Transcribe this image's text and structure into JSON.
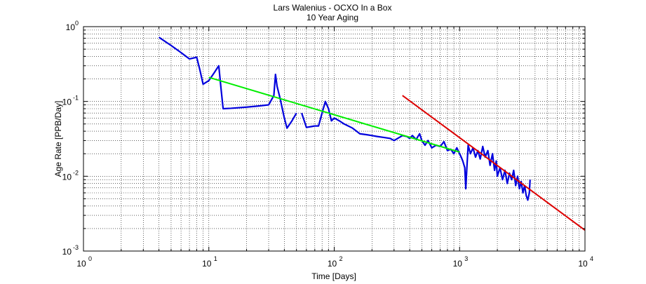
{
  "chart_data": {
    "type": "line",
    "title": "Lars Walenius - OCXO In a Box",
    "subtitle": "10 Year Aging",
    "xlabel": "Time [Days]",
    "ylabel": "Age Rate [PPB/Day]",
    "xscale": "log",
    "yscale": "log",
    "xlim": [
      1,
      10000
    ],
    "ylim": [
      0.001,
      1
    ],
    "grid": true,
    "x_ticks": [
      {
        "value": 1,
        "base": "10",
        "exp": "0"
      },
      {
        "value": 10,
        "base": "10",
        "exp": "1"
      },
      {
        "value": 100,
        "base": "10",
        "exp": "2"
      },
      {
        "value": 1000,
        "base": "10",
        "exp": "3"
      },
      {
        "value": 10000,
        "base": "10",
        "exp": "4"
      }
    ],
    "y_ticks": [
      {
        "value": 1,
        "base": "10",
        "exp": "0"
      },
      {
        "value": 0.1,
        "base": "10",
        "exp": "-1"
      },
      {
        "value": 0.01,
        "base": "10",
        "exp": "-2"
      },
      {
        "value": 0.001,
        "base": "10",
        "exp": "-3"
      }
    ],
    "series": [
      {
        "color": "#0000dd",
        "points": [
          [
            4.0,
            0.72
          ],
          [
            5.0,
            0.56
          ],
          [
            6.0,
            0.45
          ],
          [
            7.0,
            0.37
          ],
          [
            7.5,
            0.38
          ],
          [
            8.0,
            0.39
          ],
          [
            8.5,
            0.26
          ],
          [
            9.0,
            0.17
          ],
          [
            10.0,
            0.19
          ],
          [
            11.0,
            0.24
          ],
          [
            12.0,
            0.3
          ],
          [
            12.5,
            0.15
          ],
          [
            13.0,
            0.08
          ],
          [
            15.0,
            0.081
          ],
          [
            20.0,
            0.084
          ],
          [
            25.0,
            0.087
          ],
          [
            30.0,
            0.09
          ],
          [
            33.0,
            0.12
          ],
          [
            34.0,
            0.23
          ],
          [
            35.0,
            0.16
          ],
          [
            37.0,
            0.11
          ],
          [
            40.0,
            0.06
          ],
          [
            42.0,
            0.044
          ],
          [
            46.0,
            0.055
          ],
          [
            50.0,
            0.07
          ],
          null,
          [
            55.0,
            0.07
          ],
          [
            60.0,
            0.045
          ],
          [
            65.0,
            0.046
          ],
          [
            70.0,
            0.047
          ],
          [
            75.0,
            0.047
          ],
          [
            80.0,
            0.07
          ],
          [
            85.0,
            0.1
          ],
          [
            90.0,
            0.08
          ],
          [
            95.0,
            0.055
          ],
          [
            100.0,
            0.06
          ],
          [
            110.0,
            0.055
          ],
          [
            120.0,
            0.05
          ],
          [
            140.0,
            0.044
          ],
          [
            160.0,
            0.037
          ],
          [
            180.0,
            0.036
          ],
          [
            200.0,
            0.035
          ],
          [
            220.0,
            0.034
          ],
          [
            250.0,
            0.033
          ],
          [
            280.0,
            0.032
          ],
          [
            300.0,
            0.03
          ],
          [
            330.0,
            0.033
          ],
          [
            350.0,
            0.035
          ],
          [
            380.0,
            0.034
          ],
          [
            400.0,
            0.032
          ],
          [
            420.0,
            0.035
          ],
          [
            450.0,
            0.031
          ],
          [
            480.0,
            0.037
          ],
          [
            500.0,
            0.03
          ],
          [
            530.0,
            0.026
          ],
          [
            560.0,
            0.03
          ],
          [
            600.0,
            0.024
          ],
          [
            650.0,
            0.026
          ],
          [
            700.0,
            0.025
          ],
          [
            750.0,
            0.029
          ],
          [
            800.0,
            0.022
          ],
          [
            850.0,
            0.023
          ],
          [
            900.0,
            0.02
          ],
          [
            950.0,
            0.024
          ],
          [
            1000.0,
            0.02
          ],
          [
            1030.0,
            0.018
          ],
          [
            1060.0,
            0.016
          ],
          [
            1100.0,
            0.013
          ],
          [
            1120.0,
            0.0068
          ],
          [
            1140.0,
            0.012
          ],
          [
            1170.0,
            0.026
          ],
          [
            1220.0,
            0.02
          ],
          [
            1280.0,
            0.024
          ],
          [
            1340.0,
            0.018
          ],
          [
            1400.0,
            0.022
          ],
          [
            1460.0,
            0.017
          ],
          [
            1530.0,
            0.025
          ],
          [
            1600.0,
            0.018
          ],
          [
            1680.0,
            0.022
          ],
          [
            1750.0,
            0.014
          ],
          [
            1830.0,
            0.02
          ],
          [
            1900.0,
            0.012
          ],
          [
            1960.0,
            0.016
          ],
          [
            2000.0,
            0.01
          ],
          [
            2100.0,
            0.013
          ],
          [
            2200.0,
            0.009
          ],
          [
            2300.0,
            0.012
          ],
          [
            2400.0,
            0.008
          ],
          [
            2500.0,
            0.011
          ],
          [
            2600.0,
            0.009
          ],
          [
            2700.0,
            0.012
          ],
          [
            2800.0,
            0.0075
          ],
          [
            2900.0,
            0.01
          ],
          [
            3000.0,
            0.0068
          ],
          [
            3100.0,
            0.0085
          ],
          [
            3200.0,
            0.006
          ],
          [
            3300.0,
            0.0075
          ],
          [
            3400.0,
            0.0055
          ],
          [
            3500.0,
            0.0048
          ],
          [
            3600.0,
            0.006
          ],
          [
            3650.0,
            0.009
          ]
        ]
      },
      {
        "color": "#00ee00",
        "points": [
          [
            10,
            0.21
          ],
          [
            1000,
            0.021
          ]
        ]
      },
      {
        "color": "#dd0000",
        "points": [
          [
            350,
            0.12
          ],
          [
            10000,
            0.0019
          ]
        ]
      }
    ]
  }
}
